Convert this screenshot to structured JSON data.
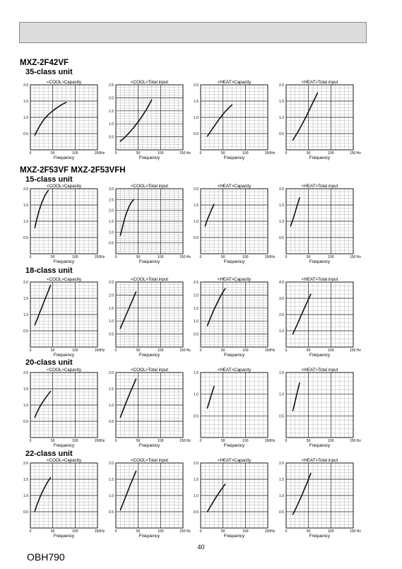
{
  "page": {
    "page_number": "40",
    "doc_code": "OBH790"
  },
  "sections": [
    {
      "model_label": "MXZ-2F42VF",
      "rows": [
        {
          "class_label": "35-class unit"
        }
      ]
    },
    {
      "model_label": "MXZ-2F53VF  MXZ-2F53VFH",
      "rows": [
        {
          "class_label": "15-class unit"
        },
        {
          "class_label": "18-class unit"
        },
        {
          "class_label": "20-class unit"
        },
        {
          "class_label": "22-class unit"
        }
      ]
    }
  ],
  "chart_data": [
    {
      "type": "line",
      "group": "35-class unit",
      "title": "<COOL>Capacity",
      "xlabel": "Frequency",
      "xlim": [
        0,
        150
      ],
      "x_ticks": [
        "0",
        "50",
        "100",
        "150Hz"
      ],
      "ylim": [
        0,
        2.0
      ],
      "y_ticks": [
        "0.5",
        "1.0",
        "1.5",
        "2.0"
      ],
      "series": [
        {
          "x": [
            10,
            20,
            30,
            40,
            50,
            60,
            70,
            80
          ],
          "y": [
            0.45,
            0.72,
            0.93,
            1.08,
            1.2,
            1.3,
            1.39,
            1.46
          ]
        }
      ]
    },
    {
      "type": "line",
      "group": "35-class unit",
      "title": "<COOL>Total input",
      "xlabel": "Frequency",
      "xlim": [
        0,
        150
      ],
      "x_ticks": [
        "0",
        "50",
        "100",
        "150 Hz"
      ],
      "ylim": [
        0,
        2.5
      ],
      "y_ticks": [
        "0.5",
        "1.0",
        "1.5",
        "2.0",
        "2.5"
      ],
      "series": [
        {
          "x": [
            10,
            20,
            30,
            40,
            50,
            60,
            70,
            80
          ],
          "y": [
            0.33,
            0.48,
            0.66,
            0.86,
            1.08,
            1.33,
            1.6,
            1.92
          ]
        }
      ]
    },
    {
      "type": "line",
      "group": "35-class unit",
      "title": "<HEAT>Capacity",
      "xlabel": "Frequency",
      "xlim": [
        0,
        150
      ],
      "x_ticks": [
        "0",
        "50",
        "100",
        "150Hz"
      ],
      "ylim": [
        0,
        2.0
      ],
      "y_ticks": [
        "0.5",
        "1.0",
        "1.5",
        "2.0"
      ],
      "series": [
        {
          "x": [
            15,
            25,
            35,
            45,
            55,
            65,
            70
          ],
          "y": [
            0.42,
            0.62,
            0.82,
            1.01,
            1.18,
            1.32,
            1.38
          ]
        }
      ]
    },
    {
      "type": "line",
      "group": "35-class unit",
      "title": "<HEAT>Total input",
      "xlabel": "Frequency",
      "xlim": [
        0,
        150
      ],
      "x_ticks": [
        "0",
        "50",
        "100",
        "150 Hz"
      ],
      "ylim": [
        0,
        2.0
      ],
      "y_ticks": [
        "0.5",
        "1.0",
        "1.5",
        "2.0"
      ],
      "series": [
        {
          "x": [
            15,
            25,
            35,
            45,
            55,
            65,
            70
          ],
          "y": [
            0.3,
            0.52,
            0.77,
            1.03,
            1.32,
            1.6,
            1.75
          ]
        }
      ]
    },
    {
      "type": "line",
      "group": "15-class unit",
      "title": "<COOL>Capacity",
      "xlabel": "Frequency",
      "xlim": [
        0,
        150
      ],
      "x_ticks": [
        "0",
        "50",
        "100",
        "150Hz"
      ],
      "ylim": [
        0,
        2.0
      ],
      "y_ticks": [
        "0.5",
        "1.0",
        "1.5",
        "2.0"
      ],
      "series": [
        {
          "x": [
            10,
            15,
            20,
            25,
            30,
            35,
            40
          ],
          "y": [
            0.8,
            1.1,
            1.35,
            1.55,
            1.72,
            1.85,
            1.95
          ]
        }
      ]
    },
    {
      "type": "line",
      "group": "15-class unit",
      "title": "<COOL>Total input",
      "xlabel": "Frequency",
      "xlim": [
        0,
        150
      ],
      "x_ticks": [
        "0",
        "50",
        "100",
        "150 Hz"
      ],
      "ylim": [
        0,
        3.0
      ],
      "y_ticks": [
        "0.5",
        "1.0",
        "1.5",
        "2.0",
        "2.5",
        "3.0"
      ],
      "series": [
        {
          "x": [
            10,
            15,
            20,
            25,
            30,
            35,
            40
          ],
          "y": [
            0.85,
            1.25,
            1.65,
            1.95,
            2.2,
            2.38,
            2.5
          ]
        }
      ]
    },
    {
      "type": "line",
      "group": "15-class unit",
      "title": "<HEAT>Capacity",
      "xlabel": "Frequency",
      "xlim": [
        0,
        150
      ],
      "x_ticks": [
        "0",
        "50",
        "100",
        "150Hz"
      ],
      "ylim": [
        0,
        2.0
      ],
      "y_ticks": [
        "0.5",
        "1.0",
        "1.5",
        "2.0"
      ],
      "series": [
        {
          "x": [
            10,
            15,
            20,
            25,
            30
          ],
          "y": [
            0.85,
            1.05,
            1.22,
            1.38,
            1.52
          ]
        }
      ]
    },
    {
      "type": "line",
      "group": "15-class unit",
      "title": "<HEAT>Total input",
      "xlabel": "Frequency",
      "xlim": [
        0,
        150
      ],
      "x_ticks": [
        "0",
        "50",
        "100",
        "150 Hz"
      ],
      "ylim": [
        0,
        2.0
      ],
      "y_ticks": [
        "0.5",
        "1.0",
        "1.5",
        "2.0"
      ],
      "series": [
        {
          "x": [
            10,
            15,
            20,
            25,
            30
          ],
          "y": [
            0.85,
            1.05,
            1.27,
            1.5,
            1.72
          ]
        }
      ]
    },
    {
      "type": "line",
      "group": "18-class unit",
      "title": "<COOL>Capacity",
      "xlabel": "Frequency",
      "xlim": [
        0,
        150
      ],
      "x_ticks": [
        "0",
        "50",
        "100",
        "150Hz"
      ],
      "ylim": [
        0,
        2.0
      ],
      "y_ticks": [
        "0.5",
        "1.0",
        "1.5",
        "2.0"
      ],
      "series": [
        {
          "x": [
            10,
            15,
            20,
            25,
            30,
            35,
            40,
            45
          ],
          "y": [
            0.68,
            0.85,
            1.03,
            1.2,
            1.38,
            1.55,
            1.72,
            1.9
          ]
        }
      ]
    },
    {
      "type": "line",
      "group": "18-class unit",
      "title": "<COOL>Total input",
      "xlabel": "Frequency",
      "xlim": [
        0,
        150
      ],
      "x_ticks": [
        "0",
        "50",
        "100",
        "150 Hz"
      ],
      "ylim": [
        0,
        2.5
      ],
      "y_ticks": [
        "0.5",
        "1.0",
        "1.5",
        "2.0",
        "2.5"
      ],
      "series": [
        {
          "x": [
            10,
            15,
            20,
            25,
            30,
            35,
            40,
            45
          ],
          "y": [
            0.72,
            0.92,
            1.12,
            1.32,
            1.52,
            1.72,
            1.92,
            2.12
          ]
        }
      ]
    },
    {
      "type": "line",
      "group": "18-class unit",
      "title": "<HEAT>Capacity",
      "xlabel": "Frequency",
      "xlim": [
        0,
        150
      ],
      "x_ticks": [
        "0",
        "50",
        "100",
        "150Hz"
      ],
      "ylim": [
        0,
        2.5
      ],
      "y_ticks": [
        "0.5",
        "1.0",
        "1.5",
        "2.0",
        "2.5"
      ],
      "series": [
        {
          "x": [
            15,
            20,
            25,
            30,
            35,
            40,
            45,
            50,
            55
          ],
          "y": [
            0.82,
            1.04,
            1.24,
            1.45,
            1.62,
            1.8,
            1.97,
            2.12,
            2.25
          ]
        }
      ]
    },
    {
      "type": "line",
      "group": "18-class unit",
      "title": "<HEAT>Total input",
      "xlabel": "Frequency",
      "xlim": [
        0,
        150
      ],
      "x_ticks": [
        "0",
        "50",
        "100",
        "150 Hz"
      ],
      "ylim": [
        0,
        4.0
      ],
      "y_ticks": [
        "1.0",
        "2.0",
        "3.0",
        "4.0"
      ],
      "series": [
        {
          "x": [
            15,
            20,
            25,
            30,
            35,
            40,
            45,
            50,
            55
          ],
          "y": [
            0.8,
            1.1,
            1.4,
            1.72,
            2.03,
            2.35,
            2.65,
            2.95,
            3.25
          ]
        }
      ]
    },
    {
      "type": "line",
      "group": "20-class unit",
      "title": "<COOL>Capacity",
      "xlabel": "Frequency",
      "xlim": [
        0,
        150
      ],
      "x_ticks": [
        "0",
        "50",
        "100",
        "150Hz"
      ],
      "ylim": [
        0,
        2.0
      ],
      "y_ticks": [
        "0.5",
        "1.0",
        "1.5",
        "2.0"
      ],
      "series": [
        {
          "x": [
            10,
            15,
            20,
            25,
            30,
            35,
            40,
            45
          ],
          "y": [
            0.62,
            0.78,
            0.92,
            1.04,
            1.14,
            1.24,
            1.33,
            1.42
          ]
        }
      ]
    },
    {
      "type": "line",
      "group": "20-class unit",
      "title": "<COOL>Total input",
      "xlabel": "Frequency",
      "xlim": [
        0,
        150
      ],
      "x_ticks": [
        "0",
        "50",
        "100",
        "150 Hz"
      ],
      "ylim": [
        0,
        2.0
      ],
      "y_ticks": [
        "0.5",
        "1.0",
        "1.5",
        "2.0"
      ],
      "series": [
        {
          "x": [
            10,
            15,
            20,
            25,
            30,
            35,
            40,
            45
          ],
          "y": [
            0.62,
            0.8,
            0.98,
            1.15,
            1.32,
            1.48,
            1.64,
            1.8
          ]
        }
      ]
    },
    {
      "type": "line",
      "group": "20-class unit",
      "title": "<HEAT>Capacity",
      "xlabel": "Frequency",
      "xlim": [
        0,
        150
      ],
      "x_ticks": [
        "0",
        "50",
        "100",
        "150Hz"
      ],
      "ylim": [
        0,
        1.5
      ],
      "y_ticks": [
        "0.5",
        "1.0",
        "1.5"
      ],
      "series": [
        {
          "x": [
            15,
            20,
            25,
            30
          ],
          "y": [
            0.68,
            0.85,
            1.02,
            1.18
          ]
        }
      ]
    },
    {
      "type": "line",
      "group": "20-class unit",
      "title": "<HEAT>Total input",
      "xlabel": "Frequency",
      "xlim": [
        0,
        150
      ],
      "x_ticks": [
        "0",
        "50",
        "100",
        "150 Hz"
      ],
      "ylim": [
        0,
        1.5
      ],
      "y_ticks": [
        "0.5",
        "1.0",
        "1.5"
      ],
      "series": [
        {
          "x": [
            15,
            20,
            25,
            30
          ],
          "y": [
            0.62,
            0.83,
            1.05,
            1.26
          ]
        }
      ]
    },
    {
      "type": "line",
      "group": "22-class unit",
      "title": "<COOL>Capacity",
      "xlabel": "Frequency",
      "xlim": [
        0,
        150
      ],
      "x_ticks": [
        "0",
        "50",
        "100",
        "150Hz"
      ],
      "ylim": [
        0,
        2.0
      ],
      "y_ticks": [
        "0.5",
        "1.0",
        "1.5",
        "2.0"
      ],
      "series": [
        {
          "x": [
            10,
            15,
            20,
            25,
            30,
            35,
            40,
            45
          ],
          "y": [
            0.52,
            0.72,
            0.9,
            1.06,
            1.2,
            1.33,
            1.45,
            1.55
          ]
        }
      ]
    },
    {
      "type": "line",
      "group": "22-class unit",
      "title": "<COOL>Total input",
      "xlabel": "Frequency",
      "xlim": [
        0,
        150
      ],
      "x_ticks": [
        "0",
        "50",
        "100",
        "150 Hz"
      ],
      "ylim": [
        0,
        2.0
      ],
      "y_ticks": [
        "0.5",
        "1.0",
        "1.5",
        "2.0"
      ],
      "series": [
        {
          "x": [
            10,
            15,
            20,
            25,
            30,
            35,
            40,
            45
          ],
          "y": [
            0.55,
            0.72,
            0.9,
            1.07,
            1.25,
            1.42,
            1.58,
            1.75
          ]
        }
      ]
    },
    {
      "type": "line",
      "group": "22-class unit",
      "title": "<HEAT>Capacity",
      "xlabel": "Frequency",
      "xlim": [
        0,
        150
      ],
      "x_ticks": [
        "0",
        "50",
        "100",
        "150Hz"
      ],
      "ylim": [
        0,
        2.0
      ],
      "y_ticks": [
        "0.5",
        "1.0",
        "1.5",
        "2.0"
      ],
      "series": [
        {
          "x": [
            15,
            20,
            25,
            30,
            35,
            40,
            45,
            50,
            55
          ],
          "y": [
            0.5,
            0.62,
            0.73,
            0.85,
            0.96,
            1.06,
            1.16,
            1.26,
            1.35
          ]
        }
      ]
    },
    {
      "type": "line",
      "group": "22-class unit",
      "title": "<HEAT>Total input",
      "xlabel": "Frequency",
      "xlim": [
        0,
        150
      ],
      "x_ticks": [
        "0",
        "50",
        "100",
        "150 Hz"
      ],
      "ylim": [
        0,
        2.0
      ],
      "y_ticks": [
        "0.5",
        "1.0",
        "1.5",
        "2.0"
      ],
      "series": [
        {
          "x": [
            15,
            20,
            25,
            30,
            35,
            40,
            45,
            50,
            55
          ],
          "y": [
            0.42,
            0.55,
            0.7,
            0.85,
            1.0,
            1.17,
            1.33,
            1.5,
            1.68
          ]
        }
      ]
    }
  ]
}
